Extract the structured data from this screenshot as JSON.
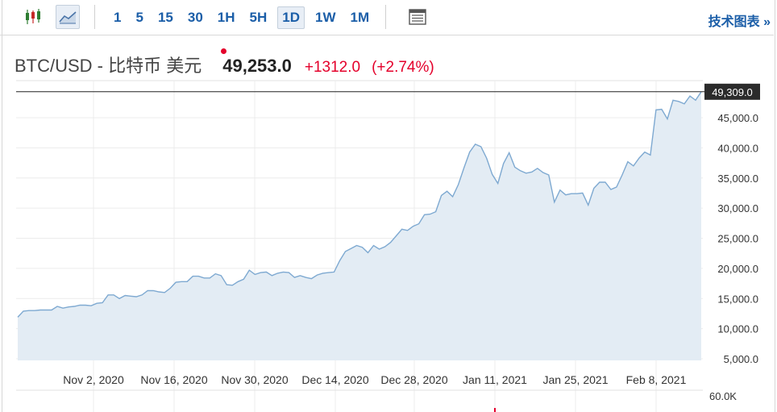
{
  "toolbar": {
    "timeframes": [
      "1",
      "5",
      "15",
      "30",
      "1H",
      "5H",
      "1D",
      "1W",
      "1M"
    ],
    "active_timeframe": "1D",
    "technical_chart_label": "技术图表 »"
  },
  "quote": {
    "symbol": "BTC/USD - 比特币 美元",
    "price": "49,253.0",
    "change": "+1312.0",
    "change_pct": "(+2.74%)"
  },
  "colors": {
    "accent_blue": "#1b5ea8",
    "change_red": "#e4002b",
    "line": "#7ea9d1",
    "fill": "#e3ecf4"
  },
  "chart_data": {
    "type": "area",
    "x_tick_labels": [
      "Nov 2, 2020",
      "Nov 16, 2020",
      "Nov 30, 2020",
      "Dec 14, 2020",
      "Dec 28, 2020",
      "Jan 11, 2021",
      "Jan 25, 2021",
      "Feb 8, 2021"
    ],
    "y_tick_labels": [
      "5,000.0",
      "10,000.0",
      "15,000.0",
      "20,000.0",
      "25,000.0",
      "30,000.0",
      "35,000.0",
      "40,000.0",
      "45,000.0"
    ],
    "y_ticks": [
      5000,
      10000,
      15000,
      20000,
      25000,
      30000,
      35000,
      40000,
      45000
    ],
    "ylim": [
      5000,
      50000
    ],
    "last_price_label": "49,309.0",
    "last_price": 49309,
    "volume_axis_label": "60.0K",
    "grid": true,
    "series": [
      {
        "values": [
          11900,
          12900,
          13000,
          13000,
          13100,
          13100,
          13100,
          13700,
          13400,
          13600,
          13700,
          13900,
          13900,
          13800,
          14200,
          14300,
          15600,
          15600,
          15000,
          15500,
          15400,
          15300,
          15600,
          16300,
          16300,
          16100,
          16000,
          16700,
          17700,
          17800,
          17800,
          18700,
          18700,
          18400,
          18400,
          19100,
          18800,
          17300,
          17200,
          17800,
          18200,
          19700,
          19000,
          19300,
          19400,
          18800,
          19200,
          19400,
          19300,
          18500,
          18800,
          18500,
          18300,
          18900,
          19200,
          19300,
          19400,
          21300,
          22800,
          23300,
          23800,
          23500,
          22600,
          23800,
          23200,
          23600,
          24300,
          25400,
          26500,
          26300,
          27000,
          27400,
          28900,
          29000,
          29400,
          32100,
          32800,
          31900,
          33900,
          36700,
          39300,
          40600,
          40200,
          38300,
          35600,
          34100,
          37400,
          39200,
          36800,
          36200,
          35800,
          36000,
          36600,
          35900,
          35500,
          31000,
          33000,
          32200,
          32400,
          32400,
          32500,
          30500,
          33300,
          34300,
          34300,
          33100,
          33500,
          35500,
          37700,
          37000,
          38300,
          39300,
          38800,
          46300,
          46400,
          44800,
          47900,
          47700,
          47300,
          48600,
          47900,
          49309
        ]
      }
    ]
  }
}
